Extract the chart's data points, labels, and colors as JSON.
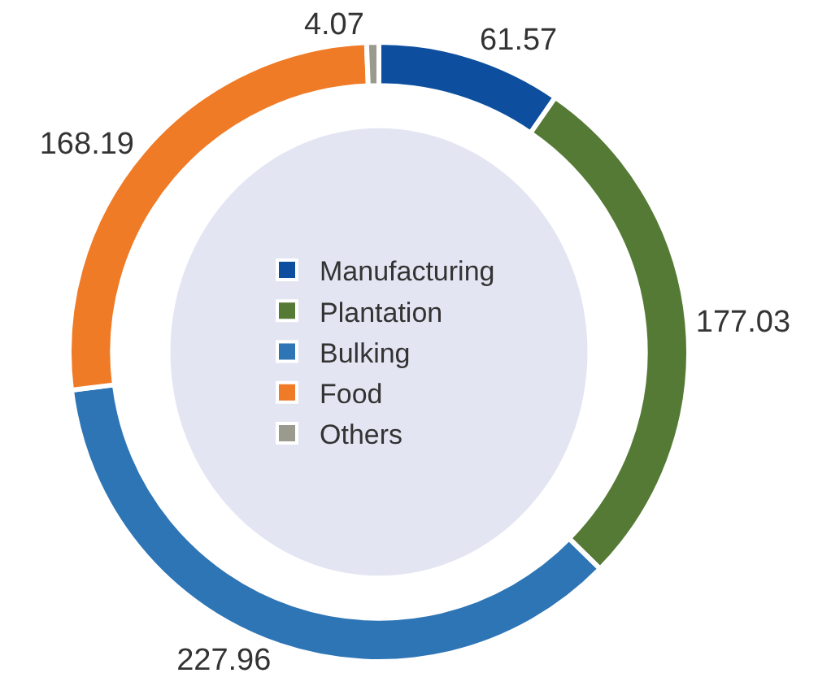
{
  "chart_data": {
    "type": "donut",
    "categories": [
      "Manufacturing",
      "Plantation",
      "Bulking",
      "Food",
      "Others"
    ],
    "values": [
      61.57,
      177.03,
      227.96,
      168.19,
      4.07
    ],
    "colors": [
      "#0d4f9e",
      "#557a35",
      "#2e75b6",
      "#f07b26",
      "#9a9a8e"
    ],
    "data_labels": true,
    "legend": "center"
  }
}
